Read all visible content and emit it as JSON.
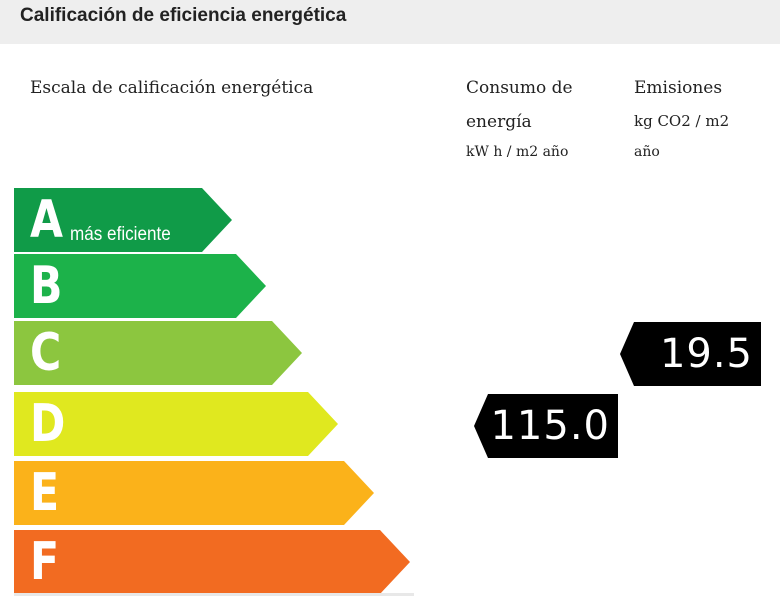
{
  "header": {
    "title": "Calificación de eficiencia energética"
  },
  "columns": {
    "scale_label": "Escala de calificación energética",
    "consumption_line1": "Consumo de",
    "consumption_line2": "energía",
    "consumption_unit": "kW h / m2 año",
    "emissions_line1": "Emisiones",
    "emissions_unit_line1": "kg CO2 / m2",
    "emissions_unit_line2": "año"
  },
  "rating_bars": [
    {
      "letter": "A",
      "note": "más eficiente",
      "color": "#109b48"
    },
    {
      "letter": "B",
      "note": "",
      "color": "#1cb24a"
    },
    {
      "letter": "C",
      "note": "",
      "color": "#8cc63f"
    },
    {
      "letter": "D",
      "note": "",
      "color": "#e0e81f"
    },
    {
      "letter": "E",
      "note": "",
      "color": "#fbb21a"
    },
    {
      "letter": "F",
      "note": "",
      "color": "#f26b21"
    }
  ],
  "indicators": {
    "consumption": {
      "value": "115.0",
      "rating": "D",
      "color": "#000000"
    },
    "emissions": {
      "value": "19.5",
      "rating": "C",
      "color": "#000000"
    }
  }
}
